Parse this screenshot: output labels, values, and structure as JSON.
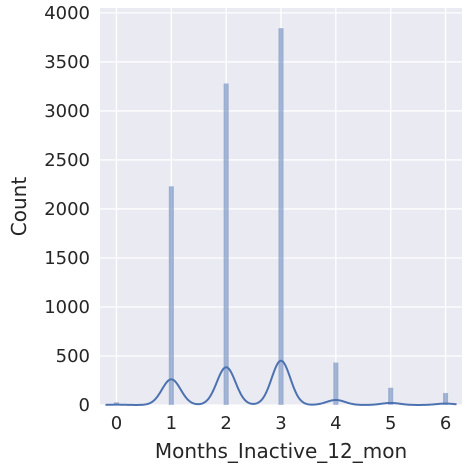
{
  "chart_data": {
    "type": "bar",
    "subtype": "histogram-with-kde",
    "xlabel": "Months_Inactive_12_mon",
    "ylabel": "Count",
    "xlim": [
      -0.3,
      6.3
    ],
    "ylim": [
      0,
      4050
    ],
    "x_ticks": [
      0,
      1,
      2,
      3,
      4,
      5,
      6
    ],
    "y_ticks": [
      0,
      500,
      1000,
      1500,
      2000,
      2500,
      3000,
      3500,
      4000
    ],
    "bin_width": 0.1,
    "bars": [
      {
        "x": 0,
        "value": 29
      },
      {
        "x": 1,
        "value": 2233
      },
      {
        "x": 2,
        "value": 3282
      },
      {
        "x": 3,
        "value": 3846
      },
      {
        "x": 4,
        "value": 435
      },
      {
        "x": 5,
        "value": 178
      },
      {
        "x": 6,
        "value": 124
      }
    ],
    "kde_color": "#4c72b0",
    "bar_color": "#4c72b0",
    "background": "#eaeaf2",
    "grid": true
  }
}
